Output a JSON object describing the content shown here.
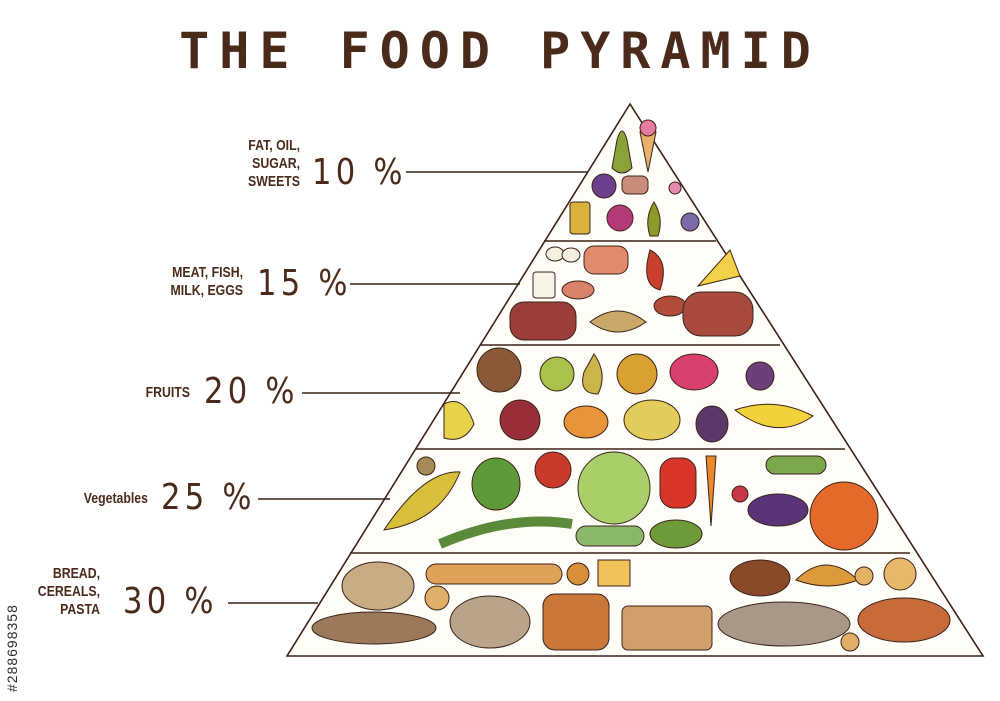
{
  "title": "THE FOOD PYRAMID",
  "levels": [
    {
      "label": "FAT, OIL,\nSUGAR,\nSWEETS",
      "percent": "10 %",
      "value": 10
    },
    {
      "label": "MEAT, FISH,\nMILK, EGGS",
      "percent": "15 %",
      "value": 15
    },
    {
      "label": "FRUITS",
      "percent": "20 %",
      "value": 20
    },
    {
      "label": "Vegetables",
      "percent": "25 %",
      "value": 25
    },
    {
      "label": "BREAD,\nCEREALS,\nPASTA",
      "percent": "30 %",
      "value": 30
    }
  ],
  "watermark": "#288698358",
  "colors": {
    "text": "#4a2a1a",
    "outline": "#3a2218"
  }
}
